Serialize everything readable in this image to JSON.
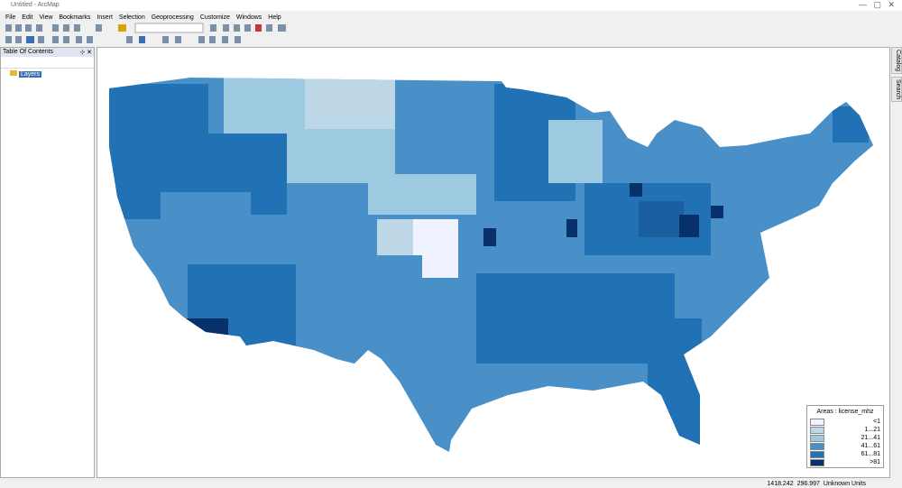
{
  "window": {
    "title": "Untitled - ArcMap"
  },
  "menu": [
    "File",
    "Edit",
    "View",
    "Bookmarks",
    "Insert",
    "Selection",
    "Geoprocessing",
    "Customize",
    "Windows",
    "Help"
  ],
  "toc": {
    "title": "Table Of Contents",
    "layer": "Layers"
  },
  "side_tabs": [
    "Catalog",
    "Search"
  ],
  "legend": {
    "title": "Areas : license_mhz",
    "items": [
      {
        "label": "<1",
        "color": "#eff3ff"
      },
      {
        "label": "1...21",
        "color": "#bdd7e7"
      },
      {
        "label": "21...41",
        "color": "#9ecae1"
      },
      {
        "label": "41...61",
        "color": "#4a90c8"
      },
      {
        "label": "61...81",
        "color": "#2171b5"
      },
      {
        "label": ">81",
        "color": "#08306b"
      }
    ]
  },
  "status": {
    "x": 1418.242,
    "y": 296.997,
    "units": "Unknown Units"
  }
}
